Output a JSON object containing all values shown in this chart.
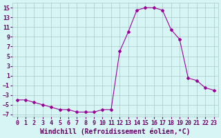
{
  "x": [
    0,
    1,
    2,
    3,
    4,
    5,
    6,
    7,
    8,
    9,
    10,
    11,
    12,
    13,
    14,
    15,
    16,
    17,
    18,
    19,
    20,
    21,
    22,
    23
  ],
  "y": [
    -4,
    -4,
    -4.5,
    -5,
    -5.5,
    -6,
    -6,
    -6.5,
    -6.5,
    -6.5,
    -6,
    -6,
    6,
    10,
    14.5,
    15,
    15,
    14.5,
    10.5,
    8.5,
    0.5,
    0,
    -1.5,
    -2
  ],
  "line_color": "#990099",
  "marker": "D",
  "marker_size": 2.0,
  "bg_color": "#d8f5f5",
  "grid_color": "#aacaca",
  "xlabel": "Windchill (Refroidissement éolien,°C)",
  "xlabel_fontsize": 7,
  "tick_fontsize": 6,
  "ylim": [
    -7.5,
    16
  ],
  "xlim": [
    -0.5,
    23.5
  ],
  "yticks": [
    -7,
    -5,
    -3,
    -1,
    1,
    3,
    5,
    7,
    9,
    11,
    13,
    15
  ],
  "xticks": [
    0,
    1,
    2,
    3,
    4,
    5,
    6,
    7,
    8,
    9,
    10,
    11,
    12,
    13,
    14,
    15,
    16,
    17,
    18,
    19,
    20,
    21,
    22,
    23
  ]
}
